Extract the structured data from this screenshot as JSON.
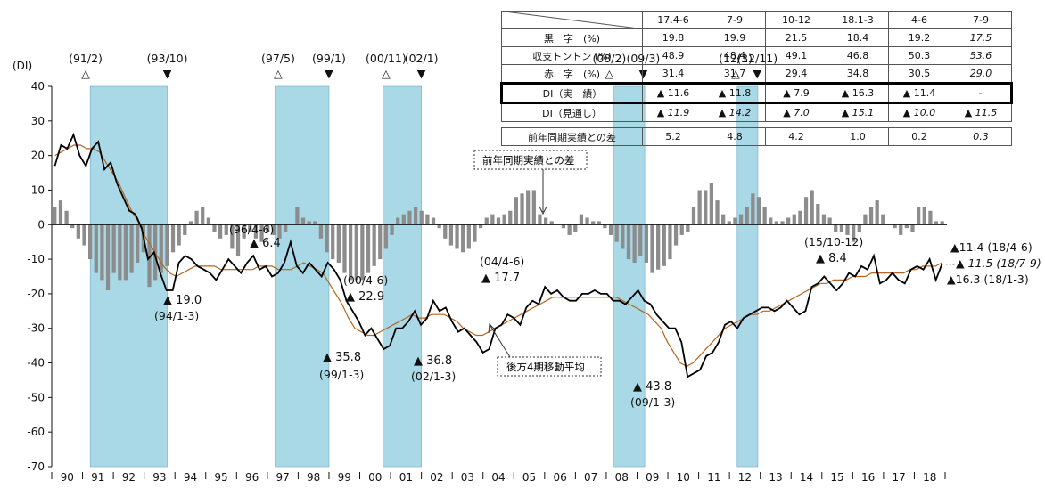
{
  "chart_data": {
    "type": "bar+line",
    "ylabel": "(DI)",
    "ylim": [
      -70,
      40
    ],
    "yticks": [
      40,
      30,
      20,
      10,
      0,
      -10,
      -20,
      -30,
      -40,
      -50,
      -60,
      -70
    ],
    "year_labels": [
      "90",
      "91",
      "92",
      "93",
      "94",
      "95",
      "96",
      "97",
      "98",
      "99",
      "00",
      "01",
      "02",
      "03",
      "04",
      "05",
      "06",
      "07",
      "08",
      "09",
      "10",
      "11",
      "12",
      "13",
      "14",
      "15",
      "16",
      "17",
      "18"
    ],
    "di_line": [
      17,
      23,
      22,
      26,
      20,
      17,
      22,
      24,
      16,
      18,
      12,
      8,
      4,
      3,
      -1,
      -10,
      -8,
      -14,
      -19,
      -19,
      -11,
      -9,
      -10,
      -12,
      -13,
      -14,
      -16,
      -13,
      -10,
      -12,
      -14,
      -11,
      -9,
      -13,
      -12,
      -15,
      -14,
      -11,
      -5,
      -12,
      -14,
      -11,
      -13,
      -15,
      -11,
      -13,
      -16,
      -22,
      -25,
      -28,
      -32,
      -30,
      -33,
      -36,
      -35,
      -30,
      -30,
      -28,
      -25,
      -29,
      -27,
      -22,
      -25,
      -24,
      -28,
      -31,
      -30,
      -32,
      -34,
      -37,
      -36,
      -30,
      -29,
      -26,
      -27,
      -29,
      -24,
      -22,
      -23,
      -18,
      -20,
      -19,
      -21,
      -22,
      -22,
      -20,
      -20,
      -19,
      -20,
      -20,
      -22,
      -22,
      -23,
      -21,
      -19,
      -22,
      -23,
      -26,
      -28,
      -30,
      -30,
      -34,
      -44,
      -43,
      -42,
      -38,
      -37,
      -34,
      -29,
      -28,
      -30,
      -27,
      -26,
      -25,
      -24,
      -24,
      -25,
      -24,
      -22,
      -24,
      -26,
      -25,
      -18,
      -17,
      -15,
      -17,
      -19,
      -17,
      -14,
      -15,
      -12,
      -13,
      -9,
      -17,
      -16,
      -14,
      -16,
      -17,
      -13,
      -12,
      -13,
      -10,
      -16,
      -11.4
    ],
    "moving_avg": [
      20,
      21,
      22,
      23,
      23,
      22,
      22,
      21,
      18,
      15,
      12,
      8,
      4,
      1,
      -3,
      -6,
      -9,
      -12,
      -14,
      -15,
      -14,
      -13,
      -12,
      -12,
      -12,
      -12,
      -13,
      -13,
      -13,
      -13,
      -13,
      -13,
      -12,
      -12,
      -12,
      -13,
      -13,
      -13,
      -12,
      -11,
      -12,
      -13,
      -14,
      -17,
      -20,
      -23,
      -27,
      -30,
      -31,
      -32,
      -32,
      -31,
      -30,
      -29,
      -28,
      -27,
      -26,
      -27,
      -27,
      -26,
      -26,
      -26,
      -27,
      -28,
      -30,
      -31,
      -32,
      -32,
      -31,
      -30,
      -29,
      -28,
      -27,
      -26,
      -25,
      -24,
      -23,
      -22,
      -21,
      -21,
      -21,
      -21,
      -21,
      -21,
      -21,
      -21,
      -21,
      -21,
      -21,
      -22,
      -23,
      -24,
      -25,
      -26,
      -28,
      -30,
      -34,
      -37,
      -40,
      -41,
      -40,
      -38,
      -36,
      -34,
      -32,
      -30,
      -29,
      -28,
      -27,
      -26,
      -26,
      -25,
      -25,
      -24,
      -23,
      -22,
      -21,
      -20,
      -19,
      -18,
      -17,
      -17,
      -16,
      -16,
      -16,
      -15,
      -15,
      -15,
      -14,
      -14,
      -14,
      -14,
      -14,
      -14,
      -13,
      -13,
      -12,
      -12,
      -12,
      -11
    ],
    "diff_bars": [
      5,
      7,
      4,
      -1,
      -4,
      -6,
      -10,
      -14,
      -16,
      -19,
      -14,
      -16,
      -16,
      -14,
      -11,
      -8,
      -18,
      -16,
      -14,
      -12,
      -8,
      -6,
      -3,
      1,
      4,
      5,
      2,
      -2,
      -4,
      -3,
      -7,
      -9,
      -4,
      -2,
      -4,
      -5,
      -2,
      -3,
      -4,
      -2,
      0,
      5,
      2,
      1,
      1,
      -4,
      -8,
      -10,
      -11,
      -14,
      -16,
      -16,
      -16,
      -14,
      -12,
      -10,
      -7,
      -3,
      2,
      3,
      4,
      5,
      4,
      3,
      2,
      -1,
      -4,
      -6,
      -7,
      -8,
      -7,
      -5,
      -1,
      2,
      3,
      2,
      3,
      4,
      8,
      9,
      10,
      10,
      3,
      2,
      1,
      0,
      -1,
      -3,
      -2,
      3,
      2,
      1,
      1,
      -1,
      -3,
      -5,
      -7,
      -10,
      -11,
      -9,
      -11,
      -14,
      -13,
      -12,
      -10,
      -6,
      -3,
      -2,
      5,
      10,
      10,
      12,
      7,
      3,
      1,
      2,
      3,
      5,
      9,
      8,
      5,
      2,
      1,
      1,
      2,
      3,
      4,
      8,
      10,
      6,
      3,
      2,
      -2,
      -2,
      -3,
      -5,
      -2,
      3,
      5,
      7,
      3,
      0,
      -1,
      -3,
      -1,
      -2,
      5,
      5,
      4,
      1,
      1
    ],
    "recession_bands": [
      {
        "from": 1991.25,
        "to": 1993.75
      },
      {
        "from": 1997.25,
        "to": 1999.0
      },
      {
        "from": 2000.75,
        "to": 2002.0
      },
      {
        "from": 2008.25,
        "to": 2009.25
      },
      {
        "from": 2012.25,
        "to": 2012.92
      }
    ],
    "peaks": [
      {
        "label": "(91/2)",
        "t": 1991.1,
        "marker": "△"
      },
      {
        "label": "(93/10)",
        "t": 1993.75,
        "marker": "▼"
      },
      {
        "label": "(97/5)",
        "t": 1997.35,
        "marker": "△"
      },
      {
        "label": "(99/1)",
        "t": 1999.0,
        "marker": "▼"
      },
      {
        "label": "(00/11)",
        "t": 2000.85,
        "marker": "△"
      },
      {
        "label": "(02/1)",
        "t": 2002.0,
        "marker": "▼"
      },
      {
        "label": "(08/2)",
        "t": 2008.1,
        "marker": "△"
      },
      {
        "label": "(09/3)",
        "t": 2009.2,
        "marker": "▼"
      },
      {
        "label": "(12/3)",
        "t": 2012.2,
        "marker": "△"
      },
      {
        "label": "(12/11)",
        "t": 2012.9,
        "marker": "▼"
      }
    ],
    "annotations": {
      "a94_value": "19.0",
      "a94_period": "(94/1-3)",
      "a96_value": "6.4",
      "a96_period": "(96/4-6)",
      "a00_value": "22.9",
      "a00_period": "(00/4-6)",
      "a99_value": "35.8",
      "a99_period": "(99/1-3)",
      "a02_value": "36.8",
      "a02_period": "(02/1-3)",
      "a04_value": "17.7",
      "a04_period": "(04/4-6)",
      "a09_value": "43.8",
      "a09_period": "(09/1-3)",
      "a15_value": "8.4",
      "a15_period": "(15/10-12)",
      "r1": "11.4 (18/4-6)",
      "r2": "11.5 (18/7-9)",
      "r3": "16.3 (18/1-3)",
      "box_diff": "前年同期実績との差",
      "box_ma": "後方4期移動平均",
      "marker_neg": "▲"
    },
    "colors": {
      "line": "#000000",
      "ma": "#b5651d",
      "bars": "#8c8c8c",
      "band": "#a9d8e6"
    }
  },
  "table": {
    "headers": [
      "17.4-6",
      "7-9",
      "10-12",
      "18.1-3",
      "4-6",
      "7-9"
    ],
    "rows": [
      {
        "label": "黒　字　(%)",
        "values": [
          "19.8",
          "19.9",
          "21.5",
          "18.4",
          "19.2",
          "17.5"
        ]
      },
      {
        "label": "収支トントン (%)",
        "values": [
          "48.9",
          "48.4",
          "49.1",
          "46.8",
          "50.3",
          "53.6"
        ]
      },
      {
        "label": "赤　字　(%)",
        "values": [
          "31.4",
          "31.7",
          "29.4",
          "34.8",
          "30.5",
          "29.0"
        ]
      },
      {
        "label": "DI（実　績）",
        "values": [
          "▲ 11.6",
          "▲ 11.8",
          "▲ 7.9",
          "▲ 16.3",
          "▲ 11.4",
          "-"
        ]
      },
      {
        "label": "DI（見通し）",
        "values": [
          "▲ 11.9",
          "▲ 14.2",
          "▲ 7.0",
          "▲ 15.1",
          "▲ 10.0",
          "▲ 11.5"
        ]
      },
      {
        "label": "前年同期実績との差",
        "values": [
          "5.2",
          "4.8",
          "4.2",
          "1.0",
          "0.2",
          "0.3"
        ]
      }
    ]
  }
}
